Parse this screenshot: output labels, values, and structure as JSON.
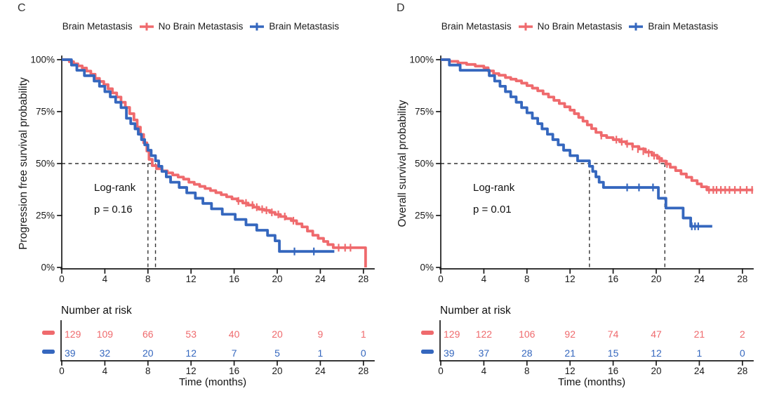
{
  "chart_data": [
    {
      "type": "line",
      "subtype": "kaplan-meier-step",
      "panel_label": "C",
      "legend": {
        "title": "Brain Metastasis",
        "items": [
          "No Brain Metastasis",
          "Brain Metastasis"
        ]
      },
      "ylabel": "Progression free survival probability",
      "xlabel": "Time (months)",
      "annotation": [
        "Log-rank",
        "p = 0.16"
      ],
      "xlim": [
        0,
        29
      ],
      "ylim": [
        0,
        100
      ],
      "xticks": [
        0,
        4,
        8,
        12,
        16,
        20,
        24,
        28
      ],
      "ytick_labels": [
        "0%",
        "25%",
        "50%",
        "75%",
        "100%"
      ],
      "grid": false,
      "legend_position": "top",
      "median_lines_x": [
        8.0,
        8.7
      ],
      "median_line_y_pct": 50,
      "series": [
        {
          "name": "No Brain Metastasis",
          "color": "#EF6A6D",
          "points": [
            [
              0,
              100
            ],
            [
              0.7,
              99
            ],
            [
              1.1,
              98
            ],
            [
              1.5,
              97
            ],
            [
              1.9,
              96
            ],
            [
              2.3,
              94.5
            ],
            [
              2.7,
              93
            ],
            [
              3.1,
              91
            ],
            [
              3.5,
              89.5
            ],
            [
              3.9,
              88
            ],
            [
              4.3,
              86
            ],
            [
              4.7,
              84
            ],
            [
              5.1,
              82
            ],
            [
              5.5,
              79.5
            ],
            [
              5.9,
              77
            ],
            [
              6.3,
              74
            ],
            [
              6.7,
              71
            ],
            [
              7,
              67.5
            ],
            [
              7.3,
              64
            ],
            [
              7.6,
              60
            ],
            [
              7.9,
              56
            ],
            [
              8.1,
              52
            ],
            [
              8.4,
              49
            ],
            [
              8.8,
              47.5
            ],
            [
              9.3,
              46.5
            ],
            [
              9.8,
              45.5
            ],
            [
              10.3,
              44.5
            ],
            [
              10.8,
              43.5
            ],
            [
              11.3,
              42.5
            ],
            [
              11.8,
              41
            ],
            [
              12.3,
              40
            ],
            [
              12.8,
              39
            ],
            [
              13.3,
              38
            ],
            [
              13.8,
              37
            ],
            [
              14.3,
              36
            ],
            [
              14.8,
              35
            ],
            [
              15.3,
              34
            ],
            [
              15.8,
              33
            ],
            [
              16.3,
              32
            ],
            [
              16.8,
              31
            ],
            [
              17.3,
              30
            ],
            [
              17.8,
              29
            ],
            [
              18.3,
              28
            ],
            [
              18.8,
              27.5
            ],
            [
              19.3,
              26.5
            ],
            [
              19.8,
              25.5
            ],
            [
              20.3,
              24.5
            ],
            [
              20.8,
              23.5
            ],
            [
              21.3,
              22.5
            ],
            [
              21.8,
              21
            ],
            [
              22.3,
              19.5
            ],
            [
              22.8,
              17.5
            ],
            [
              23.3,
              15.5
            ],
            [
              23.8,
              14
            ],
            [
              24.3,
              12.5
            ],
            [
              24.7,
              11
            ],
            [
              25.2,
              9.5
            ],
            [
              28.2,
              0
            ]
          ],
          "end": 28.2,
          "censors": [
            [
              16.4,
              32
            ],
            [
              17.1,
              31
            ],
            [
              17.7,
              30
            ],
            [
              18.1,
              29
            ],
            [
              18.6,
              28
            ],
            [
              19,
              27.5
            ],
            [
              19.5,
              26.5
            ],
            [
              20.1,
              25.5
            ],
            [
              20.7,
              24.5
            ],
            [
              21.5,
              22.5
            ],
            [
              25.7,
              9.5
            ],
            [
              26.3,
              9.5
            ],
            [
              26.8,
              9.5
            ]
          ]
        },
        {
          "name": "Brain Metastasis",
          "color": "#3567BE",
          "points": [
            [
              0,
              100
            ],
            [
              0.9,
              97.4
            ],
            [
              1.4,
              94.9
            ],
            [
              2.1,
              92.3
            ],
            [
              3,
              89.7
            ],
            [
              3.5,
              87.2
            ],
            [
              4,
              84.6
            ],
            [
              4.5,
              82.1
            ],
            [
              5,
              79.5
            ],
            [
              5.5,
              76.9
            ],
            [
              6,
              71.8
            ],
            [
              6.4,
              69.2
            ],
            [
              6.8,
              66.7
            ],
            [
              7.1,
              64.1
            ],
            [
              7.4,
              61.5
            ],
            [
              7.7,
              59
            ],
            [
              8,
              56.4
            ],
            [
              8.3,
              53.8
            ],
            [
              8.7,
              51.3
            ],
            [
              9,
              48.7
            ],
            [
              9.3,
              46.2
            ],
            [
              9.7,
              43.6
            ],
            [
              10.1,
              41
            ],
            [
              10.9,
              38.5
            ],
            [
              11.6,
              35.9
            ],
            [
              12.4,
              33.3
            ],
            [
              13.1,
              30.8
            ],
            [
              13.9,
              28.2
            ],
            [
              14.9,
              25.6
            ],
            [
              16.1,
              23.1
            ],
            [
              17.1,
              20.5
            ],
            [
              18.1,
              17.9
            ],
            [
              19.1,
              15.4
            ],
            [
              19.8,
              12.8
            ],
            [
              20.2,
              7.7
            ]
          ],
          "end": 25.3,
          "censors": [
            [
              21.6,
              7.7
            ],
            [
              23.4,
              7.7
            ]
          ]
        }
      ],
      "risk_table": {
        "title": "Number at risk",
        "times": [
          0,
          4,
          8,
          12,
          16,
          20,
          24,
          28
        ],
        "rows": [
          {
            "name": "No Brain Metastasis",
            "color": "#EF6A6D",
            "values": [
              129,
              109,
              66,
              53,
              40,
              20,
              9,
              1
            ]
          },
          {
            "name": "Brain Metastasis",
            "color": "#3567BE",
            "values": [
              39,
              32,
              20,
              12,
              7,
              5,
              1,
              0
            ]
          }
        ]
      }
    },
    {
      "type": "line",
      "subtype": "kaplan-meier-step",
      "panel_label": "D",
      "legend": {
        "title": "Brain Metastasis",
        "items": [
          "No Brain Metastasis",
          "Brain Metastasis"
        ]
      },
      "ylabel": "Overall survival probability",
      "xlabel": "Time (months)",
      "annotation": [
        "Log-rank",
        "p = 0.01"
      ],
      "xlim": [
        0,
        29
      ],
      "ylim": [
        0,
        100
      ],
      "xticks": [
        0,
        4,
        8,
        12,
        16,
        20,
        24,
        28
      ],
      "ytick_labels": [
        "0%",
        "25%",
        "50%",
        "75%",
        "100%"
      ],
      "grid": false,
      "legend_position": "top",
      "median_lines_x": [
        13.8,
        20.8
      ],
      "median_line_y_pct": 50,
      "series": [
        {
          "name": "No Brain Metastasis",
          "color": "#EF6A6D",
          "points": [
            [
              0,
              100
            ],
            [
              0.8,
              99.2
            ],
            [
              1.6,
              98.4
            ],
            [
              2.4,
              97.7
            ],
            [
              3.2,
              96.9
            ],
            [
              4,
              96.1
            ],
            [
              4.4,
              94.6
            ],
            [
              4.9,
              93.3
            ],
            [
              5.4,
              92.5
            ],
            [
              6,
              91.4
            ],
            [
              6.5,
              90.6
            ],
            [
              7,
              89.8
            ],
            [
              7.5,
              88.7
            ],
            [
              8,
              87.5
            ],
            [
              8.5,
              86.3
            ],
            [
              9,
              85
            ],
            [
              9.5,
              83.5
            ],
            [
              10,
              82
            ],
            [
              10.5,
              80.4
            ],
            [
              11,
              78.9
            ],
            [
              11.5,
              77.3
            ],
            [
              12,
              75.7
            ],
            [
              12.4,
              74
            ],
            [
              12.8,
              72.2
            ],
            [
              13.2,
              70.4
            ],
            [
              13.6,
              68.6
            ],
            [
              14,
              66.8
            ],
            [
              14.4,
              65
            ],
            [
              14.9,
              63.5
            ],
            [
              15.4,
              62.5
            ],
            [
              16,
              61.5
            ],
            [
              16.6,
              60.5
            ],
            [
              17.2,
              59.5
            ],
            [
              17.8,
              58.2
            ],
            [
              18.4,
              57
            ],
            [
              19,
              55.5
            ],
            [
              19.6,
              54
            ],
            [
              20.1,
              52.5
            ],
            [
              20.5,
              51.2
            ],
            [
              20.9,
              49.8
            ],
            [
              21.3,
              48.2
            ],
            [
              21.8,
              46.6
            ],
            [
              22.3,
              45
            ],
            [
              22.8,
              43.4
            ],
            [
              23.3,
              41.8
            ],
            [
              23.8,
              40.2
            ],
            [
              24.2,
              38.8
            ],
            [
              24.7,
              37.3
            ]
          ],
          "end": 29.0,
          "censors": [
            [
              14.9,
              63.5
            ],
            [
              16.3,
              61.5
            ],
            [
              16.8,
              60.5
            ],
            [
              17.3,
              59.5
            ],
            [
              17.8,
              58.2
            ],
            [
              18.3,
              57
            ],
            [
              18.8,
              56
            ],
            [
              19.3,
              55
            ],
            [
              19.8,
              53.8
            ],
            [
              20.3,
              52
            ],
            [
              21,
              49.8
            ],
            [
              24.9,
              37.3
            ],
            [
              25.3,
              37.3
            ],
            [
              25.6,
              37.3
            ],
            [
              26,
              37.3
            ],
            [
              26.4,
              37.3
            ],
            [
              26.8,
              37.3
            ],
            [
              27.3,
              37.3
            ],
            [
              27.8,
              37.3
            ],
            [
              28.4,
              37.3
            ],
            [
              28.9,
              37.3
            ]
          ]
        },
        {
          "name": "Brain Metastasis",
          "color": "#3567BE",
          "points": [
            [
              0,
              100
            ],
            [
              0.8,
              97.4
            ],
            [
              1.8,
              94.9
            ],
            [
              4.5,
              92.3
            ],
            [
              5,
              89.7
            ],
            [
              5.5,
              87.2
            ],
            [
              6,
              84.6
            ],
            [
              6.5,
              82.1
            ],
            [
              7,
              79.5
            ],
            [
              7.5,
              76.9
            ],
            [
              8,
              74.4
            ],
            [
              8.5,
              71.8
            ],
            [
              9,
              69.2
            ],
            [
              9.4,
              66.7
            ],
            [
              9.9,
              64.1
            ],
            [
              10.4,
              61.5
            ],
            [
              10.9,
              59
            ],
            [
              11.4,
              56.4
            ],
            [
              12,
              53.8
            ],
            [
              12.7,
              51.3
            ],
            [
              13.8,
              48.7
            ],
            [
              14.1,
              46.2
            ],
            [
              14.4,
              43.6
            ],
            [
              14.7,
              41
            ],
            [
              15.1,
              38.5
            ],
            [
              20.2,
              33.3
            ],
            [
              20.9,
              28.6
            ],
            [
              22.5,
              23.8
            ],
            [
              23.2,
              19.8
            ]
          ],
          "end": 25.2,
          "censors": [
            [
              17.3,
              38.5
            ],
            [
              18.4,
              38.5
            ],
            [
              19.7,
              38.5
            ],
            [
              23.3,
              19.8
            ],
            [
              23.6,
              19.8
            ],
            [
              23.9,
              19.8
            ]
          ]
        }
      ],
      "risk_table": {
        "title": "Number at risk",
        "times": [
          0,
          4,
          8,
          12,
          16,
          20,
          24,
          28
        ],
        "rows": [
          {
            "name": "No Brain Metastasis",
            "color": "#EF6A6D",
            "values": [
              129,
              122,
              106,
              92,
              74,
              47,
              21,
              2
            ]
          },
          {
            "name": "Brain Metastasis",
            "color": "#3567BE",
            "values": [
              39,
              37,
              28,
              21,
              15,
              12,
              1,
              0
            ]
          }
        ]
      }
    }
  ]
}
